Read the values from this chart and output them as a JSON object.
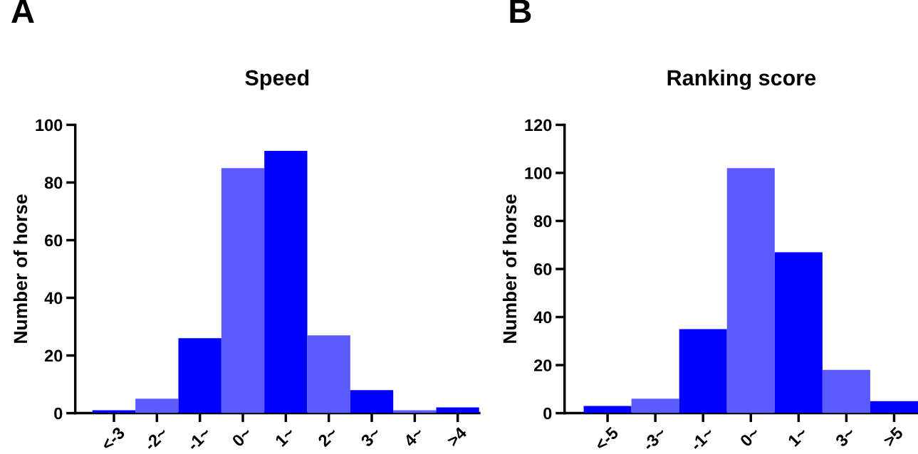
{
  "chart_data": [
    {
      "type": "bar",
      "title": "Speed",
      "ylabel": "Number of horse",
      "annotations": [
        "A"
      ],
      "categories": [
        "<-3",
        "-2~",
        "-1~",
        "0~",
        "1~",
        "2~",
        "3~",
        "4~",
        ">4"
      ],
      "values": [
        1,
        5,
        26,
        85,
        91,
        27,
        8,
        1,
        2
      ],
      "colors": [
        "#0000ff",
        "#5a5aff",
        "#0000ff",
        "#5a5aff",
        "#0000ff",
        "#5a5aff",
        "#0000ff",
        "#5a5aff",
        "#0000ff"
      ],
      "ylim": [
        0,
        100
      ],
      "yticks": [
        0,
        20,
        40,
        60,
        80,
        100
      ]
    },
    {
      "type": "bar",
      "title": "Ranking score",
      "ylabel": "Number of horse",
      "annotations": [
        "B"
      ],
      "categories": [
        "<-5",
        "-3~",
        "-1~",
        "0~",
        "1~",
        "3~",
        ">5"
      ],
      "values": [
        3,
        6,
        35,
        102,
        67,
        18,
        5
      ],
      "colors": [
        "#0000ff",
        "#5a5aff",
        "#0000ff",
        "#5a5aff",
        "#0000ff",
        "#5a5aff",
        "#0000ff"
      ],
      "ylim": [
        0,
        120
      ],
      "yticks": [
        0,
        20,
        40,
        60,
        80,
        100,
        120
      ]
    }
  ]
}
